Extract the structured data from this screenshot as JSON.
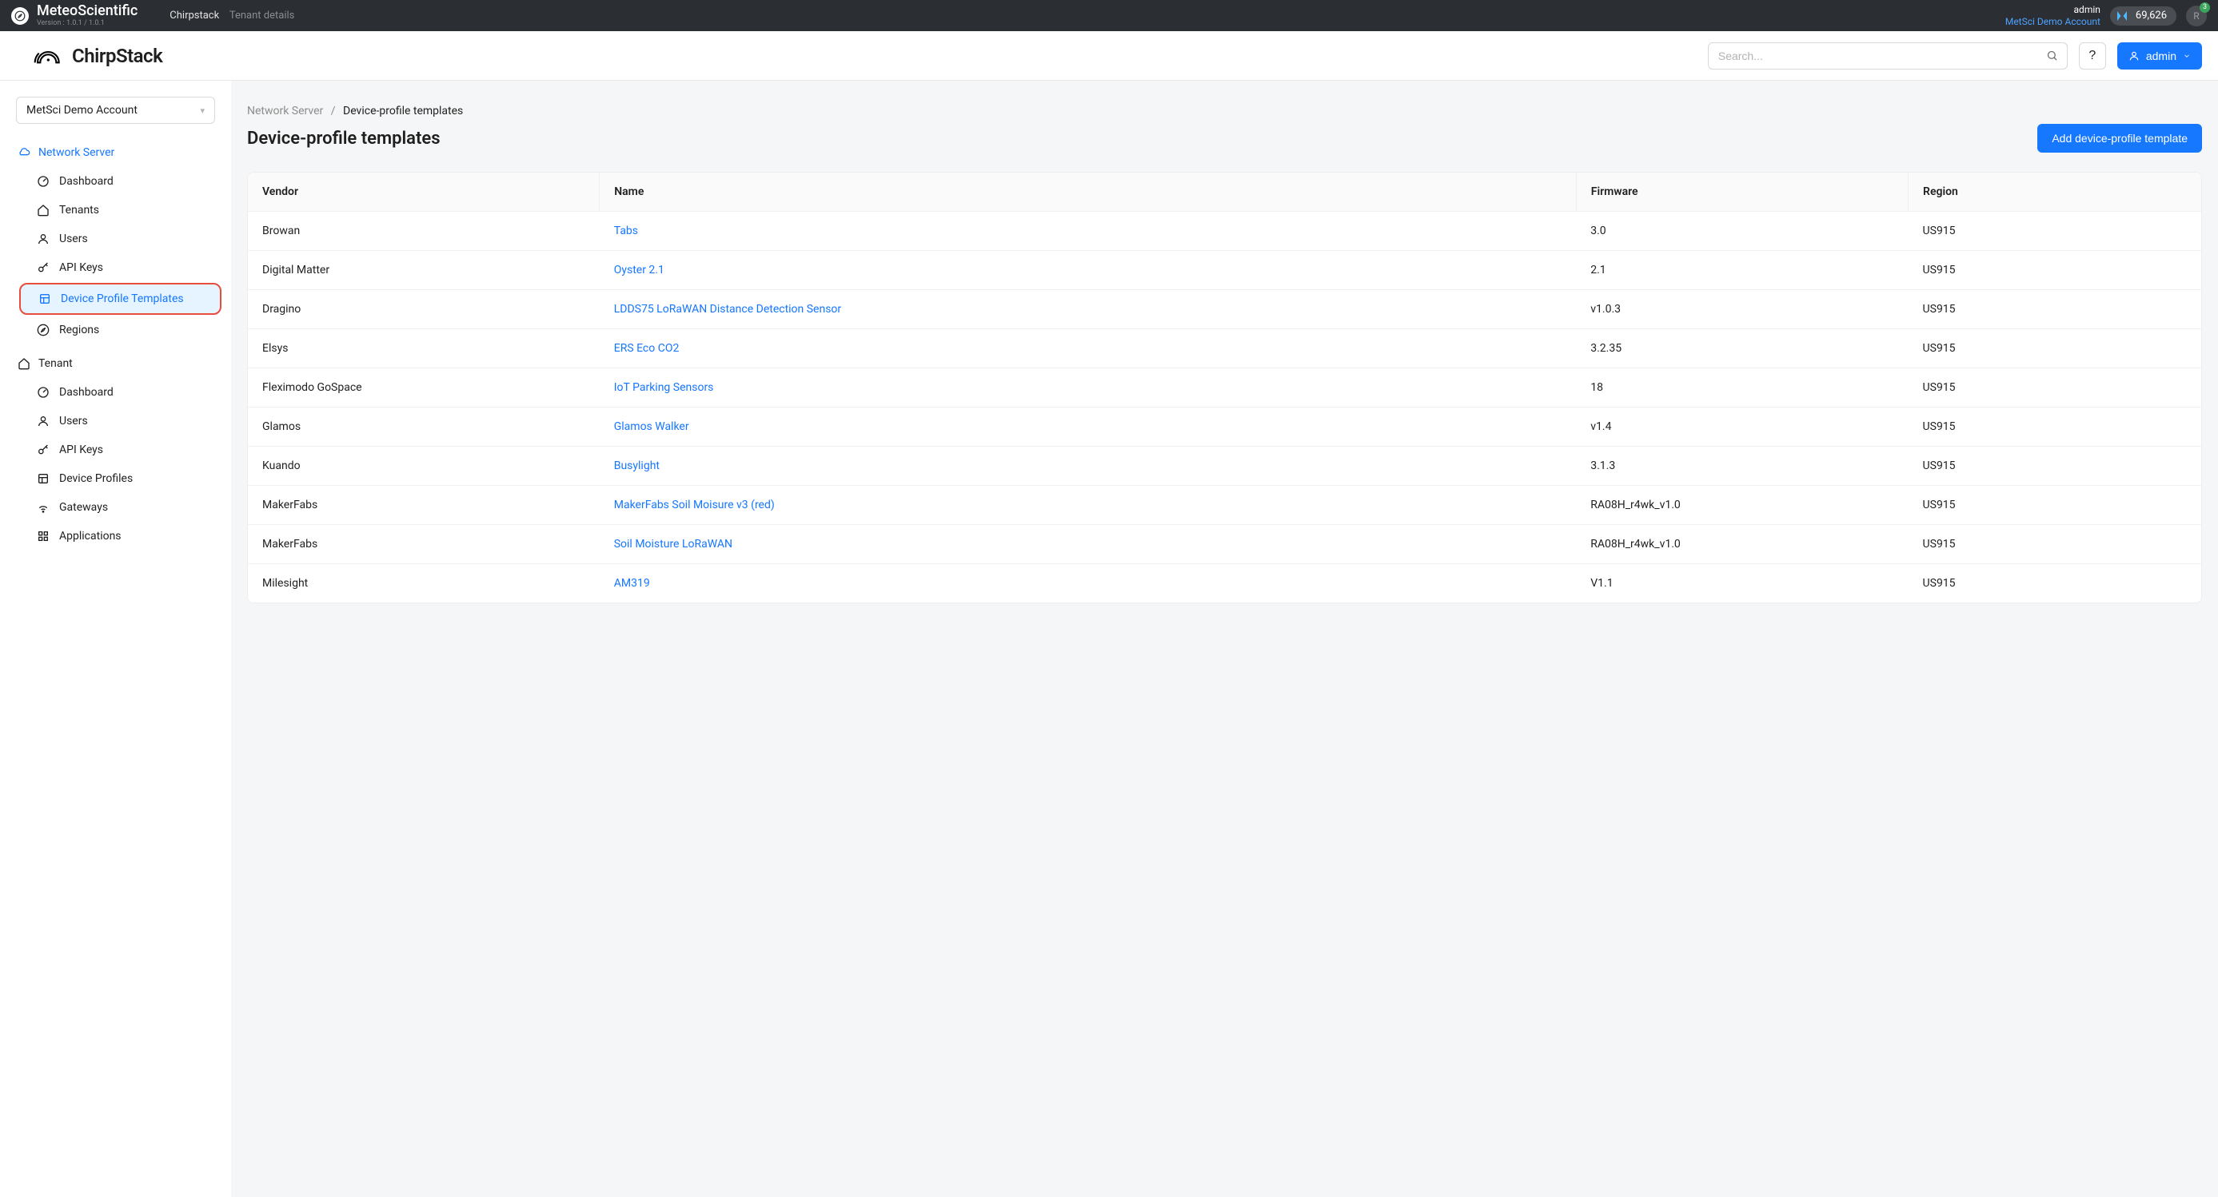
{
  "topbar": {
    "brand": "MeteoScientific",
    "version_line": "Version : 1.0.1 / 1.0.1",
    "crumb_app": "Chirpstack",
    "crumb_page": "Tenant details",
    "admin_label": "admin",
    "tenant_link": "MetSci Demo Account",
    "counter": "69,626",
    "avatar_initial": "R",
    "badge": "3"
  },
  "header": {
    "logo_text": "ChirpStack",
    "search_placeholder": "Search...",
    "help_label": "?",
    "admin_button": "admin"
  },
  "sidebar": {
    "tenant_selector": "MetSci Demo Account",
    "section_network": "Network Server",
    "ns_items": [
      {
        "label": "Dashboard",
        "icon": "dashboard"
      },
      {
        "label": "Tenants",
        "icon": "home"
      },
      {
        "label": "Users",
        "icon": "user"
      },
      {
        "label": "API Keys",
        "icon": "key"
      },
      {
        "label": "Device Profile Templates",
        "icon": "template",
        "active": true
      },
      {
        "label": "Regions",
        "icon": "compass"
      }
    ],
    "section_tenant": "Tenant",
    "tenant_items": [
      {
        "label": "Dashboard",
        "icon": "dashboard"
      },
      {
        "label": "Users",
        "icon": "user"
      },
      {
        "label": "API Keys",
        "icon": "key"
      },
      {
        "label": "Device Profiles",
        "icon": "template"
      },
      {
        "label": "Gateways",
        "icon": "wifi"
      },
      {
        "label": "Applications",
        "icon": "apps"
      }
    ]
  },
  "breadcrumb": {
    "root": "Network Server",
    "current": "Device-profile templates"
  },
  "page": {
    "title": "Device-profile templates",
    "add_button": "Add device-profile template"
  },
  "table": {
    "columns": [
      "Vendor",
      "Name",
      "Firmware",
      "Region"
    ],
    "rows": [
      {
        "vendor": "Browan",
        "name": "Tabs",
        "firmware": "3.0",
        "region": "US915"
      },
      {
        "vendor": "Digital Matter",
        "name": "Oyster 2.1",
        "firmware": "2.1",
        "region": "US915"
      },
      {
        "vendor": "Dragino",
        "name": "LDDS75 LoRaWAN Distance Detection Sensor",
        "firmware": "v1.0.3",
        "region": "US915"
      },
      {
        "vendor": "Elsys",
        "name": "ERS Eco CO2",
        "firmware": "3.2.35",
        "region": "US915"
      },
      {
        "vendor": "Fleximodo GoSpace",
        "name": "IoT Parking Sensors",
        "firmware": "18",
        "region": "US915"
      },
      {
        "vendor": "Glamos",
        "name": "Glamos Walker",
        "firmware": "v1.4",
        "region": "US915"
      },
      {
        "vendor": "Kuando",
        "name": "Busylight",
        "firmware": "3.1.3",
        "region": "US915"
      },
      {
        "vendor": "MakerFabs",
        "name": "MakerFabs Soil Moisure v3 (red)",
        "firmware": "RA08H_r4wk_v1.0",
        "region": "US915"
      },
      {
        "vendor": "MakerFabs",
        "name": "Soil Moisture LoRaWAN",
        "firmware": "RA08H_r4wk_v1.0",
        "region": "US915"
      },
      {
        "vendor": "Milesight",
        "name": "AM319",
        "firmware": "V1.1",
        "region": "US915"
      }
    ]
  },
  "colors": {
    "primary": "#1677ff",
    "highlight_border": "#e74c3c",
    "topbar_bg": "#2b2e33",
    "link": "#1677ff"
  }
}
